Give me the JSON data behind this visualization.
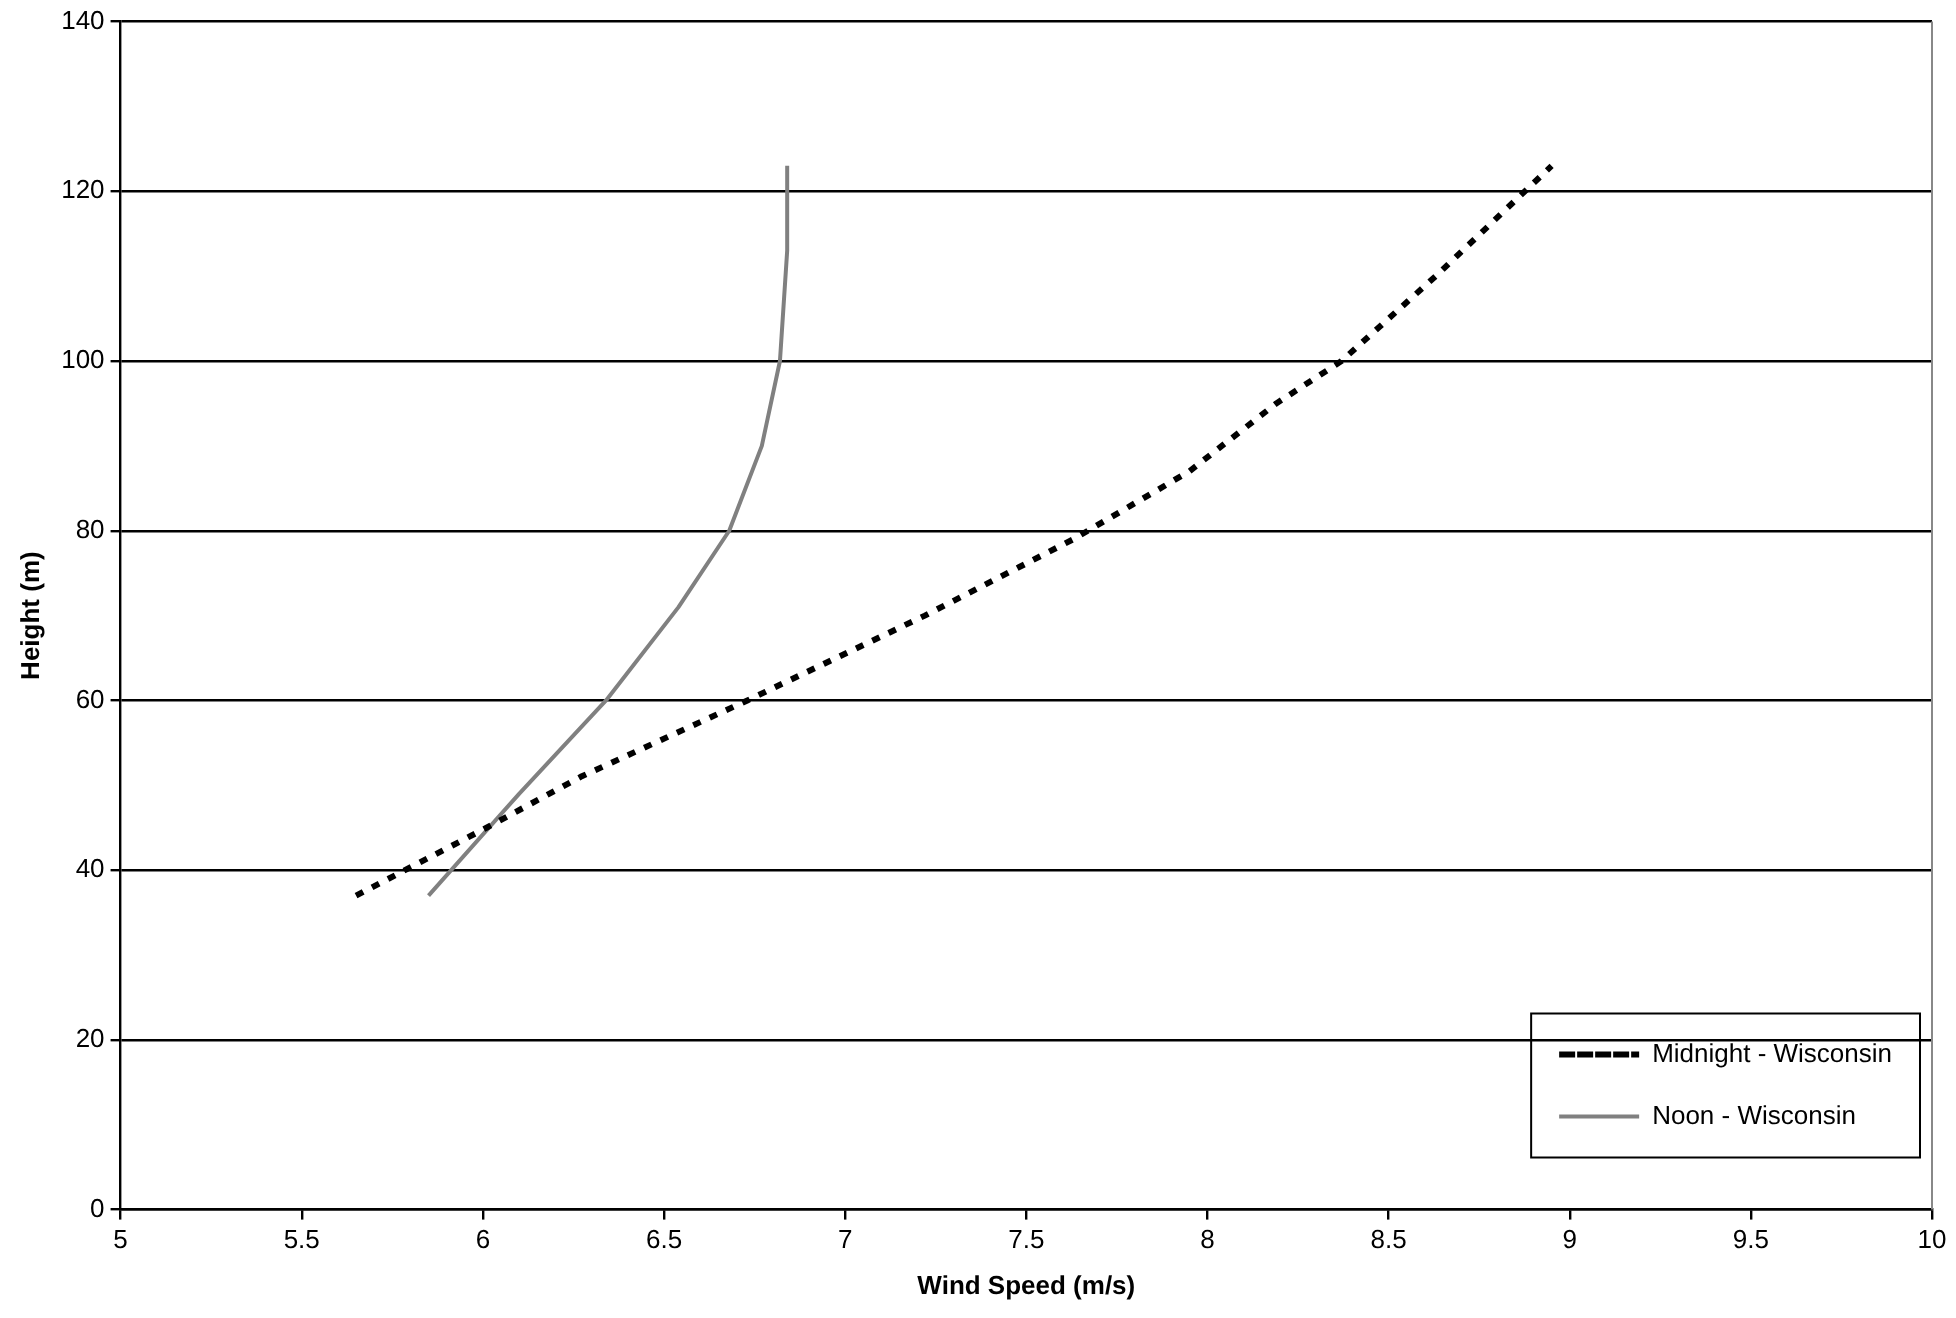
{
  "chart_data": {
    "type": "line",
    "xlabel": "Wind Speed (m/s)",
    "ylabel": "Height (m)",
    "xlim": [
      5,
      10
    ],
    "xticks": [
      5,
      5.5,
      6,
      6.5,
      7,
      7.5,
      8,
      8.5,
      9,
      9.5,
      10
    ],
    "ylim": [
      0,
      140
    ],
    "yticks": [
      0,
      20,
      40,
      60,
      80,
      100,
      120,
      140
    ],
    "grid": "y",
    "legend": "bottom right",
    "marker": "none",
    "series": [
      {
        "name": "Midnight - Wisconsin",
        "color": "#000000",
        "line_style": "dotted",
        "x": [
          5.65,
          6.01,
          6.27,
          6.73,
          7.22,
          7.63,
          7.95,
          8.19,
          8.37,
          8.63,
          8.95
        ],
        "values": [
          37,
          45,
          51,
          60,
          70,
          79,
          87,
          95,
          100,
          110,
          123
        ]
      },
      {
        "name": "Noon - Wisconsin",
        "color": "#808080",
        "line_style": "solid",
        "x": [
          5.85,
          6.1,
          6.34,
          6.54,
          6.68,
          6.77,
          6.82,
          6.84,
          6.84
        ],
        "values": [
          37,
          49,
          60,
          71,
          80,
          90,
          100,
          113,
          123
        ]
      }
    ]
  }
}
